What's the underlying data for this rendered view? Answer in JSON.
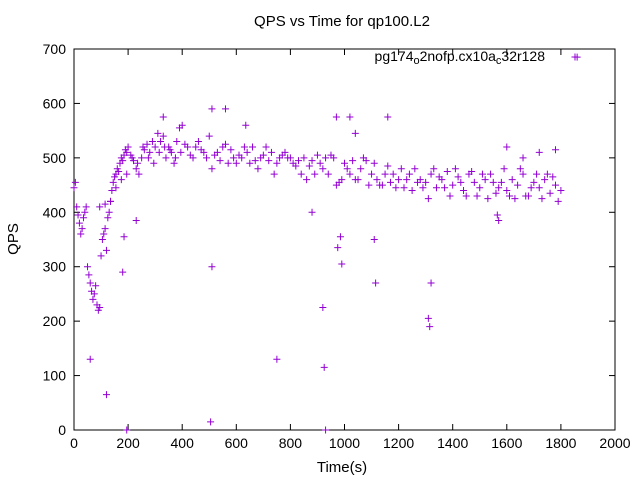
{
  "chart_data": {
    "type": "scatter",
    "title": "QPS vs Time for qp100.L2",
    "xlabel": "Time(s)",
    "ylabel": "QPS",
    "xlim": [
      0,
      2000
    ],
    "ylim": [
      0,
      700
    ],
    "xticks": [
      "0",
      "200",
      "400",
      "600",
      "800",
      "1000",
      "1200",
      "1400",
      "1600",
      "1800",
      "2000"
    ],
    "yticks": [
      "0",
      "100",
      "200",
      "300",
      "400",
      "500",
      "600",
      "700"
    ],
    "grid": false,
    "legend_position": "top-right",
    "marker": "plus",
    "series": [
      {
        "name_parts": [
          "pg174",
          "o",
          "2nofp.cx10a",
          "c",
          "32r128"
        ],
        "color": "#9400d3",
        "points": [
          [
            0,
            445
          ],
          [
            5,
            455
          ],
          [
            10,
            410
          ],
          [
            15,
            395
          ],
          [
            20,
            380
          ],
          [
            25,
            360
          ],
          [
            30,
            370
          ],
          [
            35,
            390
          ],
          [
            40,
            400
          ],
          [
            45,
            410
          ],
          [
            50,
            300
          ],
          [
            55,
            285
          ],
          [
            60,
            270
          ],
          [
            65,
            255
          ],
          [
            70,
            240
          ],
          [
            75,
            250
          ],
          [
            80,
            265
          ],
          [
            85,
            230
          ],
          [
            90,
            220
          ],
          [
            95,
            225
          ],
          [
            100,
            320
          ],
          [
            105,
            350
          ],
          [
            110,
            360
          ],
          [
            115,
            370
          ],
          [
            120,
            330
          ],
          [
            125,
            390
          ],
          [
            130,
            400
          ],
          [
            135,
            420
          ],
          [
            140,
            440
          ],
          [
            145,
            455
          ],
          [
            150,
            465
          ],
          [
            155,
            470
          ],
          [
            160,
            480
          ],
          [
            165,
            475
          ],
          [
            170,
            490
          ],
          [
            175,
            500
          ],
          [
            180,
            495
          ],
          [
            185,
            505
          ],
          [
            190,
            515
          ],
          [
            195,
            510
          ],
          [
            200,
            520
          ],
          [
            210,
            505
          ],
          [
            220,
            495
          ],
          [
            230,
            480
          ],
          [
            240,
            470
          ],
          [
            250,
            500
          ],
          [
            260,
            515
          ],
          [
            270,
            525
          ],
          [
            280,
            510
          ],
          [
            290,
            530
          ],
          [
            300,
            520
          ],
          [
            310,
            545
          ],
          [
            320,
            530
          ],
          [
            330,
            540
          ],
          [
            340,
            500
          ],
          [
            350,
            520
          ],
          [
            360,
            510
          ],
          [
            370,
            490
          ],
          [
            380,
            530
          ],
          [
            390,
            555
          ],
          [
            400,
            560
          ],
          [
            420,
            520
          ],
          [
            440,
            500
          ],
          [
            460,
            530
          ],
          [
            480,
            510
          ],
          [
            500,
            540
          ],
          [
            520,
            505
          ],
          [
            540,
            495
          ],
          [
            560,
            525
          ],
          [
            580,
            515
          ],
          [
            600,
            490
          ],
          [
            620,
            500
          ],
          [
            640,
            510
          ],
          [
            660,
            520
          ],
          [
            680,
            480
          ],
          [
            700,
            505
          ],
          [
            720,
            495
          ],
          [
            740,
            470
          ],
          [
            760,
            500
          ],
          [
            780,
            510
          ],
          [
            800,
            500
          ],
          [
            820,
            485
          ],
          [
            840,
            470
          ],
          [
            860,
            460
          ],
          [
            880,
            495
          ],
          [
            900,
            505
          ],
          [
            920,
            480
          ],
          [
            940,
            470
          ],
          [
            960,
            500
          ],
          [
            980,
            455
          ],
          [
            1000,
            490
          ],
          [
            1020,
            470
          ],
          [
            1040,
            460
          ],
          [
            1060,
            480
          ],
          [
            1080,
            495
          ],
          [
            1100,
            470
          ],
          [
            1120,
            460
          ],
          [
            1140,
            450
          ],
          [
            1160,
            485
          ],
          [
            1180,
            470
          ],
          [
            1200,
            460
          ],
          [
            1220,
            445
          ],
          [
            1240,
            470
          ],
          [
            1260,
            480
          ],
          [
            1280,
            460
          ],
          [
            1300,
            455
          ],
          [
            1320,
            470
          ],
          [
            1340,
            445
          ],
          [
            1360,
            460
          ],
          [
            1380,
            475
          ],
          [
            1400,
            450
          ],
          [
            1420,
            465
          ],
          [
            1440,
            440
          ],
          [
            1460,
            470
          ],
          [
            1480,
            455
          ],
          [
            1500,
            445
          ],
          [
            1520,
            460
          ],
          [
            1540,
            470
          ],
          [
            1560,
            435
          ],
          [
            1580,
            455
          ],
          [
            1600,
            440
          ],
          [
            1620,
            460
          ],
          [
            1640,
            450
          ],
          [
            1660,
            470
          ],
          [
            1680,
            430
          ],
          [
            1700,
            455
          ],
          [
            1720,
            445
          ],
          [
            1740,
            460
          ],
          [
            1760,
            435
          ],
          [
            1780,
            450
          ],
          [
            1800,
            440
          ],
          [
            1790,
            420
          ],
          [
            1770,
            465
          ],
          [
            1750,
            470
          ],
          [
            1730,
            425
          ],
          [
            1710,
            470
          ],
          [
            1690,
            445
          ],
          [
            1670,
            430
          ],
          [
            1650,
            480
          ],
          [
            1630,
            425
          ],
          [
            1610,
            430
          ],
          [
            1590,
            480
          ],
          [
            1570,
            445
          ],
          [
            1550,
            455
          ],
          [
            1530,
            425
          ],
          [
            1510,
            470
          ],
          [
            1490,
            430
          ],
          [
            1470,
            475
          ],
          [
            1450,
            430
          ],
          [
            1430,
            455
          ],
          [
            1410,
            480
          ],
          [
            1390,
            430
          ],
          [
            1370,
            445
          ],
          [
            1350,
            465
          ],
          [
            1330,
            480
          ],
          [
            1310,
            425
          ],
          [
            1290,
            445
          ],
          [
            1270,
            455
          ],
          [
            1250,
            440
          ],
          [
            1230,
            460
          ],
          [
            1210,
            480
          ],
          [
            1190,
            445
          ],
          [
            1170,
            455
          ],
          [
            1150,
            470
          ],
          [
            1130,
            450
          ],
          [
            1110,
            490
          ],
          [
            1090,
            450
          ],
          [
            1070,
            500
          ],
          [
            1050,
            460
          ],
          [
            1030,
            495
          ],
          [
            1010,
            480
          ],
          [
            990,
            460
          ],
          [
            970,
            450
          ],
          [
            950,
            505
          ],
          [
            930,
            500
          ],
          [
            910,
            490
          ],
          [
            890,
            470
          ],
          [
            870,
            485
          ],
          [
            850,
            500
          ],
          [
            830,
            495
          ],
          [
            810,
            490
          ],
          [
            790,
            500
          ],
          [
            770,
            505
          ],
          [
            750,
            490
          ],
          [
            730,
            510
          ],
          [
            710,
            520
          ],
          [
            690,
            500
          ],
          [
            670,
            495
          ],
          [
            650,
            490
          ],
          [
            630,
            520
          ],
          [
            610,
            505
          ],
          [
            590,
            500
          ],
          [
            570,
            490
          ],
          [
            550,
            520
          ],
          [
            530,
            510
          ],
          [
            510,
            480
          ],
          [
            490,
            500
          ],
          [
            470,
            515
          ],
          [
            450,
            520
          ],
          [
            430,
            505
          ],
          [
            410,
            525
          ],
          [
            395,
            510
          ],
          [
            375,
            500
          ],
          [
            355,
            515
          ],
          [
            335,
            520
          ],
          [
            315,
            510
          ],
          [
            295,
            490
          ],
          [
            275,
            500
          ],
          [
            255,
            520
          ],
          [
            235,
            490
          ],
          [
            215,
            500
          ],
          [
            195,
            470
          ],
          [
            175,
            460
          ],
          [
            155,
            445
          ],
          [
            135,
            420
          ],
          [
            115,
            415
          ],
          [
            95,
            410
          ],
          [
            60,
            130
          ],
          [
            120,
            65
          ],
          [
            180,
            290
          ],
          [
            185,
            355
          ],
          [
            230,
            385
          ],
          [
            330,
            575
          ],
          [
            510,
            590
          ],
          [
            560,
            590
          ],
          [
            635,
            560
          ],
          [
            510,
            300
          ],
          [
            505,
            15
          ],
          [
            750,
            130
          ],
          [
            880,
            400
          ],
          [
            920,
            225
          ],
          [
            925,
            115
          ],
          [
            970,
            575
          ],
          [
            985,
            355
          ],
          [
            990,
            305
          ],
          [
            1020,
            575
          ],
          [
            1040,
            545
          ],
          [
            1110,
            350
          ],
          [
            1115,
            270
          ],
          [
            1160,
            575
          ],
          [
            1310,
            205
          ],
          [
            1315,
            190
          ],
          [
            1320,
            270
          ],
          [
            1565,
            395
          ],
          [
            1570,
            385
          ],
          [
            1600,
            520
          ],
          [
            1660,
            500
          ],
          [
            1720,
            510
          ],
          [
            1780,
            515
          ],
          [
            1860,
            685
          ],
          [
            975,
            335
          ],
          [
            195,
            0
          ],
          [
            930,
            0
          ]
        ]
      }
    ]
  }
}
